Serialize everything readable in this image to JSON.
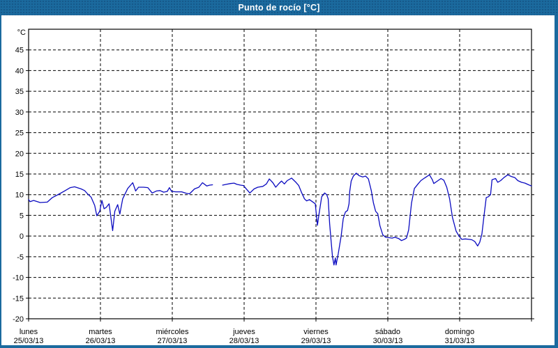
{
  "window": {
    "title": "Punto de rocío [°C]"
  },
  "colors": {
    "frame_blue": "#1b6a9e",
    "title_text": "#ffffff",
    "plot_background": "#ffffff",
    "grid": "#000000",
    "axis": "#000000",
    "tick_label": "#000000",
    "series_line": "#0a0ac0"
  },
  "chart_data": {
    "type": "line",
    "title": "Punto de rocío [°C]",
    "grid": "dashed",
    "legend": "none",
    "y_axis": {
      "unit_label": "°C",
      "min": -20,
      "max": 50,
      "tick_step": 5,
      "tick_labels": [
        45,
        40,
        35,
        30,
        25,
        20,
        15,
        10,
        5,
        0,
        -5,
        -10,
        -15,
        -20
      ]
    },
    "x_axis": {
      "days": [
        {
          "name": "lunes",
          "date": "25/03/13"
        },
        {
          "name": "martes",
          "date": "26/03/13"
        },
        {
          "name": "miércoles",
          "date": "27/03/13"
        },
        {
          "name": "jueves",
          "date": "28/03/13"
        },
        {
          "name": "viernes",
          "date": "29/03/13"
        },
        {
          "name": "sábado",
          "date": "30/03/13"
        },
        {
          "name": "domingo",
          "date": "31/03/13"
        }
      ],
      "range_days": 7
    },
    "series": [
      {
        "name": "Punto de rocío",
        "color": "#0a0ac0",
        "units": "°C",
        "x_units": "days since 25/03/13 00:00",
        "segments": [
          [
            [
              0,
              8.8
            ],
            [
              0.02,
              8.3
            ],
            [
              0.07,
              8.6
            ],
            [
              0.16,
              8.1
            ],
            [
              0.26,
              8.2
            ],
            [
              0.33,
              9.3
            ],
            [
              0.43,
              10.2
            ],
            [
              0.5,
              10.9
            ],
            [
              0.58,
              11.7
            ],
            [
              0.64,
              11.9
            ],
            [
              0.73,
              11.4
            ],
            [
              0.78,
              11.0
            ],
            [
              0.82,
              10.2
            ],
            [
              0.87,
              9.4
            ],
            [
              0.92,
              7.4
            ],
            [
              0.95,
              4.9
            ],
            [
              0.99,
              6.0
            ],
            [
              1.02,
              8.6
            ],
            [
              1.05,
              6.6
            ],
            [
              1.08,
              6.9
            ],
            [
              1.12,
              7.8
            ],
            [
              1.15,
              4.0
            ],
            [
              1.17,
              1.3
            ],
            [
              1.2,
              6.0
            ],
            [
              1.24,
              7.6
            ],
            [
              1.27,
              5.3
            ],
            [
              1.31,
              9.0
            ],
            [
              1.38,
              11.5
            ],
            [
              1.45,
              12.9
            ],
            [
              1.49,
              10.9
            ],
            [
              1.53,
              11.8
            ],
            [
              1.6,
              11.8
            ],
            [
              1.66,
              11.7
            ],
            [
              1.72,
              10.4
            ],
            [
              1.78,
              10.9
            ],
            [
              1.83,
              11.0
            ],
            [
              1.88,
              10.6
            ],
            [
              1.93,
              10.8
            ],
            [
              1.96,
              11.7
            ],
            [
              1.99,
              10.8
            ],
            [
              2.05,
              10.7
            ],
            [
              2.13,
              10.7
            ],
            [
              2.2,
              10.3
            ],
            [
              2.24,
              10.2
            ],
            [
              2.31,
              11.4
            ],
            [
              2.37,
              11.8
            ],
            [
              2.42,
              12.9
            ],
            [
              2.48,
              12.1
            ],
            [
              2.52,
              12.3
            ],
            [
              2.56,
              12.4
            ]
          ],
          [
            [
              2.7,
              12.3
            ],
            [
              2.75,
              12.5
            ],
            [
              2.81,
              12.7
            ],
            [
              2.86,
              12.8
            ],
            [
              2.9,
              12.5
            ],
            [
              2.95,
              12.3
            ],
            [
              2.99,
              12.2
            ],
            [
              3.04,
              11.2
            ],
            [
              3.08,
              10.4
            ],
            [
              3.14,
              11.4
            ],
            [
              3.19,
              11.8
            ],
            [
              3.26,
              12.0
            ],
            [
              3.31,
              12.6
            ],
            [
              3.35,
              13.8
            ],
            [
              3.4,
              12.9
            ],
            [
              3.44,
              11.8
            ],
            [
              3.49,
              12.8
            ],
            [
              3.52,
              13.3
            ],
            [
              3.56,
              12.6
            ],
            [
              3.6,
              13.4
            ],
            [
              3.66,
              14.0
            ],
            [
              3.72,
              13.0
            ],
            [
              3.76,
              12.2
            ],
            [
              3.8,
              10.5
            ],
            [
              3.84,
              9.0
            ],
            [
              3.87,
              8.5
            ],
            [
              3.91,
              8.8
            ],
            [
              3.95,
              8.3
            ],
            [
              3.99,
              7.8
            ],
            [
              4.02,
              2.6
            ],
            [
              4.04,
              5.0
            ],
            [
              4.08,
              9.5
            ],
            [
              4.12,
              10.4
            ],
            [
              4.15,
              10.0
            ],
            [
              4.17,
              9.0
            ],
            [
              4.19,
              3.0
            ],
            [
              4.21,
              -1.0
            ],
            [
              4.23,
              -5.0
            ],
            [
              4.25,
              -7.0
            ],
            [
              4.27,
              -5.3
            ],
            [
              4.28,
              -7.0
            ],
            [
              4.31,
              -4.3
            ],
            [
              4.35,
              0.0
            ],
            [
              4.38,
              4.2
            ],
            [
              4.41,
              5.8
            ],
            [
              4.44,
              6.2
            ],
            [
              4.46,
              7.8
            ],
            [
              4.47,
              10.8
            ],
            [
              4.49,
              13.3
            ],
            [
              4.52,
              14.5
            ],
            [
              4.56,
              15.2
            ],
            [
              4.6,
              14.6
            ],
            [
              4.65,
              14.3
            ],
            [
              4.69,
              14.5
            ],
            [
              4.73,
              13.8
            ],
            [
              4.77,
              11.0
            ],
            [
              4.8,
              8.0
            ],
            [
              4.83,
              6.0
            ],
            [
              4.86,
              5.4
            ],
            [
              4.89,
              2.5
            ],
            [
              4.93,
              0.3
            ],
            [
              4.97,
              -0.3
            ],
            [
              5.02,
              -0.4
            ],
            [
              5.06,
              -0.5
            ],
            [
              5.1,
              -0.3
            ],
            [
              5.15,
              -0.6
            ],
            [
              5.19,
              -1.1
            ],
            [
              5.23,
              -0.8
            ],
            [
              5.26,
              -0.5
            ],
            [
              5.29,
              1.5
            ],
            [
              5.33,
              8.0
            ],
            [
              5.37,
              11.5
            ],
            [
              5.42,
              12.6
            ],
            [
              5.46,
              13.4
            ],
            [
              5.51,
              14.0
            ],
            [
              5.58,
              14.8
            ],
            [
              5.62,
              13.6
            ],
            [
              5.64,
              12.7
            ],
            [
              5.69,
              13.3
            ],
            [
              5.74,
              13.9
            ],
            [
              5.78,
              13.5
            ],
            [
              5.82,
              11.8
            ],
            [
              5.86,
              9.0
            ],
            [
              5.9,
              4.5
            ],
            [
              5.95,
              1.2
            ],
            [
              5.99,
              0.0
            ],
            [
              6.03,
              -0.8
            ],
            [
              6.08,
              -0.7
            ],
            [
              6.13,
              -0.8
            ],
            [
              6.17,
              -0.9
            ],
            [
              6.21,
              -1.3
            ],
            [
              6.25,
              -2.4
            ],
            [
              6.28,
              -1.5
            ],
            [
              6.31,
              0.5
            ],
            [
              6.34,
              5.0
            ],
            [
              6.37,
              9.3
            ],
            [
              6.4,
              9.5
            ],
            [
              6.43,
              10.0
            ],
            [
              6.45,
              13.6
            ],
            [
              6.5,
              13.9
            ],
            [
              6.53,
              13.0
            ],
            [
              6.57,
              13.4
            ],
            [
              6.62,
              14.2
            ],
            [
              6.67,
              14.8
            ],
            [
              6.72,
              14.4
            ],
            [
              6.77,
              14.1
            ],
            [
              6.81,
              13.4
            ],
            [
              6.86,
              13.0
            ],
            [
              6.91,
              12.8
            ],
            [
              6.96,
              12.4
            ],
            [
              7.0,
              12.1
            ]
          ]
        ]
      }
    ]
  }
}
